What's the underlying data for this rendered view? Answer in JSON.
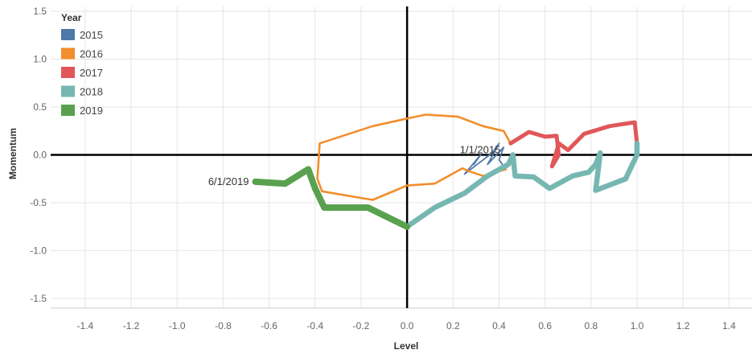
{
  "chart_data": {
    "type": "line",
    "xlabel": "Level",
    "ylabel": "Momentum",
    "xlim": [
      -1.55,
      1.5
    ],
    "ylim": [
      -1.6,
      1.55
    ],
    "xticks": [
      "-1.4",
      "-1.2",
      "-1.0",
      "-0.8",
      "-0.6",
      "-0.4",
      "-0.2",
      "0.0",
      "0.2",
      "0.4",
      "0.6",
      "0.8",
      "1.0",
      "1.2",
      "1.4"
    ],
    "yticks": [
      "1.5",
      "1.0",
      "0.5",
      "0.0",
      "-0.5",
      "-1.0",
      "-1.5"
    ],
    "grid": true,
    "legend": {
      "title": "Year",
      "placement": "top-left",
      "entries": [
        "2015",
        "2016",
        "2017",
        "2018",
        "2019"
      ]
    },
    "colors": {
      "2015": "#4e79a7",
      "2016": "#f28e2b",
      "2017": "#e15759",
      "2018": "#76b7b2",
      "2019": "#59a14f"
    },
    "annotations": [
      {
        "text": "1/1/2015",
        "x": 0.29,
        "y": -0.1
      },
      {
        "text": "6/1/2019",
        "x": -0.66,
        "y": -0.28
      }
    ],
    "series": [
      {
        "name": "2015",
        "x": [
          0.29,
          0.32,
          0.25,
          0.37,
          0.4,
          0.35,
          0.42,
          0.4,
          0.43
        ],
        "y": [
          -0.1,
          0.0,
          -0.2,
          0.02,
          0.12,
          -0.1,
          0.08,
          -0.05,
          -0.15
        ]
      },
      {
        "name": "2016",
        "x": [
          0.43,
          0.33,
          0.27,
          0.24,
          0.12,
          0.0,
          -0.15,
          -0.37,
          -0.39,
          -0.38,
          -0.15,
          0.0,
          0.08,
          0.22,
          0.33,
          0.42,
          0.45
        ],
        "y": [
          -0.15,
          -0.22,
          -0.17,
          -0.14,
          -0.3,
          -0.32,
          -0.47,
          -0.38,
          -0.25,
          0.12,
          0.3,
          0.38,
          0.42,
          0.4,
          0.3,
          0.25,
          0.12
        ]
      },
      {
        "name": "2017",
        "x": [
          0.45,
          0.53,
          0.6,
          0.65,
          0.66,
          0.63,
          0.66,
          0.7,
          0.77,
          0.88,
          0.99,
          1.0
        ],
        "y": [
          0.12,
          0.24,
          0.19,
          0.2,
          0.0,
          -0.12,
          0.12,
          0.05,
          0.22,
          0.3,
          0.34,
          0.12
        ]
      },
      {
        "name": "2018",
        "x": [
          1.0,
          1.0,
          0.95,
          0.82,
          0.84,
          0.82,
          0.79,
          0.72,
          0.62,
          0.55,
          0.47,
          0.46,
          0.44,
          0.35,
          0.25,
          0.12,
          0.0
        ],
        "y": [
          0.12,
          0.0,
          -0.25,
          -0.37,
          0.02,
          -0.1,
          -0.18,
          -0.22,
          -0.35,
          -0.23,
          -0.22,
          0.0,
          -0.1,
          -0.22,
          -0.4,
          -0.55,
          -0.75
        ]
      },
      {
        "name": "2019",
        "x": [
          0.0,
          -0.17,
          -0.36,
          -0.4,
          -0.43,
          -0.53,
          -0.66
        ],
        "y": [
          -0.75,
          -0.55,
          -0.55,
          -0.35,
          -0.15,
          -0.3,
          -0.28
        ]
      }
    ]
  }
}
